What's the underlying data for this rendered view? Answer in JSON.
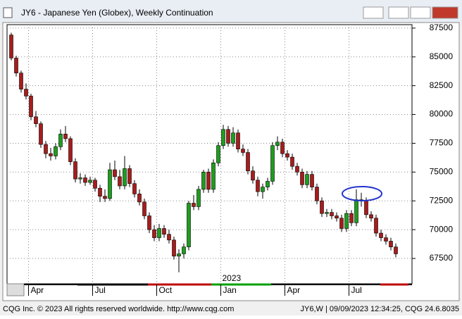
{
  "window_title": "JY6 - Japanese Yen (Globex), Weekly Continuation",
  "footer_left": "CQG Inc. © 2023 All rights reserved worldwide. http://www.cqg.com",
  "footer_right": "JY6,W | 09/09/2023 12:34:25, CQG 24.6.8035",
  "chart_data": {
    "type": "candlestick",
    "annotation": "2023",
    "categories": [
      null,
      null,
      null,
      null,
      "Apr",
      null,
      null,
      null,
      null,
      null,
      null,
      null,
      null,
      null,
      null,
      null,
      null,
      "Jul",
      null,
      null,
      null,
      null,
      null,
      null,
      null,
      null,
      null,
      null,
      null,
      null,
      "Oct",
      null,
      null,
      null,
      null,
      null,
      null,
      null,
      null,
      null,
      null,
      null,
      null,
      "Jan",
      null,
      null,
      null,
      null,
      null,
      null,
      null,
      null,
      null,
      null,
      null,
      null,
      "Apr",
      null,
      null,
      null,
      null,
      null,
      null,
      null,
      null,
      null,
      null,
      null,
      null,
      "Jul",
      null,
      null,
      null,
      null,
      null,
      null,
      null,
      null,
      null
    ],
    "open": [
      86900,
      84900,
      83600,
      82200,
      81600,
      79800,
      79200,
      77400,
      76600,
      76400,
      77200,
      78300,
      77900,
      75900,
      74400,
      74500,
      74100,
      74300,
      73600,
      72900,
      72700,
      75200,
      74600,
      73800,
      75300,
      74000,
      73100,
      72400,
      71200,
      70000,
      69300,
      70100,
      69600,
      69100,
      67700,
      67900,
      68500,
      72300,
      72000,
      73500,
      75000,
      73500,
      75800,
      77300,
      78700,
      77500,
      78400,
      77000,
      76700,
      75100,
      74300,
      73300,
      73700,
      74200,
      77300,
      77600,
      76600,
      76300,
      75500,
      75000,
      73900,
      74800,
      73700,
      72500,
      71400,
      71500,
      71200,
      71000,
      70100,
      71400,
      70600,
      72600,
      72500,
      71300,
      71000,
      69700,
      69300,
      69000,
      68500
    ],
    "high": [
      87100,
      85100,
      83800,
      82700,
      81800,
      80300,
      79400,
      77700,
      77100,
      77500,
      78700,
      79000,
      78100,
      76200,
      74900,
      74800,
      74600,
      74500,
      73900,
      73500,
      75800,
      76000,
      75200,
      76400,
      75600,
      74300,
      73500,
      72700,
      71500,
      70400,
      70500,
      70400,
      70000,
      69400,
      68300,
      68800,
      72500,
      73000,
      73800,
      75200,
      75300,
      76100,
      77600,
      79100,
      79000,
      78900,
      78700,
      77400,
      77000,
      75500,
      74600,
      74000,
      74500,
      77600,
      78100,
      77900,
      76900,
      76600,
      75800,
      75300,
      75100,
      75100,
      74000,
      72800,
      71800,
      71800,
      71500,
      71300,
      71700,
      71700,
      73500,
      73200,
      72800,
      71600,
      71300,
      70000,
      69600,
      69300,
      68800
    ],
    "low": [
      84700,
      83300,
      81900,
      81300,
      79500,
      78900,
      77100,
      76200,
      76000,
      76100,
      76900,
      77600,
      75600,
      74100,
      74000,
      73800,
      73900,
      73300,
      72400,
      72400,
      72500,
      74300,
      73500,
      73500,
      73700,
      72800,
      72100,
      70900,
      69700,
      69000,
      69000,
      69300,
      68800,
      67400,
      66300,
      67500,
      68200,
      71700,
      71700,
      73200,
      73200,
      73200,
      75500,
      77000,
      77200,
      77200,
      76700,
      76400,
      74800,
      74000,
      72900,
      72700,
      73400,
      73900,
      76900,
      76300,
      76000,
      75200,
      74700,
      73600,
      73600,
      73400,
      72200,
      71100,
      71100,
      70900,
      70700,
      69800,
      69800,
      70300,
      70300,
      72000,
      71000,
      70700,
      69400,
      69000,
      68700,
      68200,
      67600
    ],
    "close": [
      84900,
      83600,
      82200,
      81600,
      79800,
      79200,
      77400,
      76600,
      76400,
      77200,
      78300,
      77900,
      75900,
      74400,
      74500,
      74100,
      74300,
      73600,
      72900,
      72700,
      75200,
      74600,
      73800,
      75300,
      74000,
      73100,
      72400,
      71200,
      70000,
      69300,
      70100,
      69600,
      69100,
      67700,
      67900,
      68500,
      72300,
      72000,
      73500,
      75000,
      73500,
      75800,
      77300,
      78700,
      77500,
      78400,
      77000,
      76700,
      75100,
      74300,
      73300,
      73700,
      74200,
      77300,
      77600,
      76600,
      76300,
      75500,
      75000,
      73900,
      74800,
      73700,
      72500,
      71400,
      71500,
      71200,
      71000,
      70100,
      71400,
      70600,
      72600,
      72500,
      71300,
      71000,
      69700,
      69300,
      69000,
      68500,
      67900
    ],
    "up_color": "#1e9e1e",
    "down_color": "#a81c1c",
    "ylim": [
      65300,
      87800
    ],
    "yticks": [
      67500,
      70000,
      72500,
      75000,
      77500,
      80000,
      82500,
      85000,
      87500
    ],
    "grid": true
  }
}
